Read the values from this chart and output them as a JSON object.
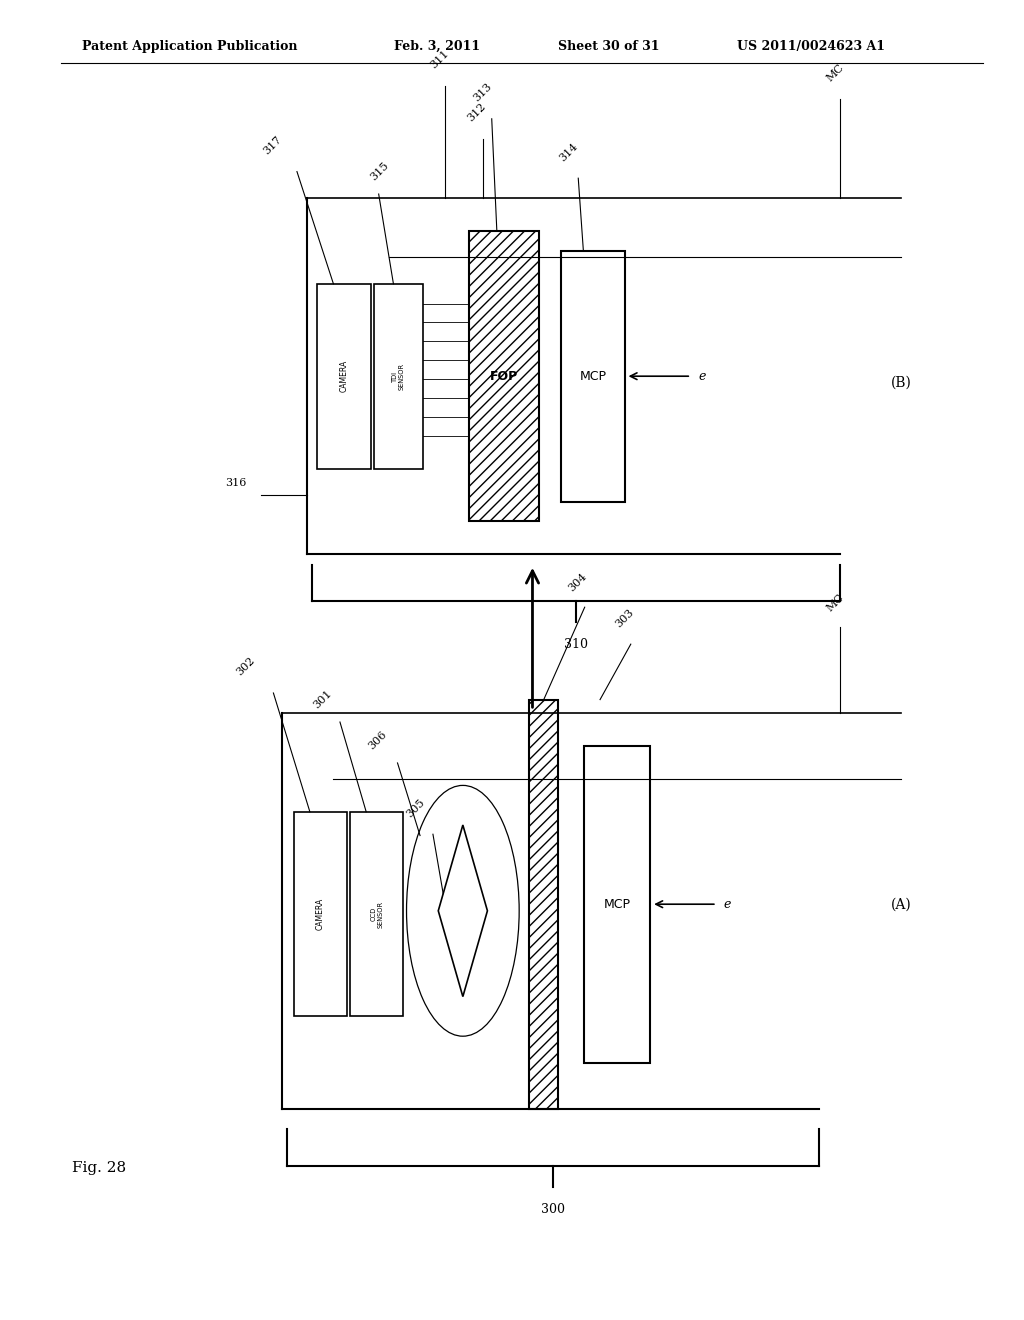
{
  "bg_color": "#ffffff",
  "header_text": "Patent Application Publication",
  "header_date": "Feb. 3, 2011",
  "header_sheet": "Sheet 30 of 31",
  "header_patent": "US 2011/0024623 A1",
  "fig_label": "Fig. 28",
  "diagram_A_label": "(A)",
  "diagram_B_label": "(B)",
  "bracket_A_label": "300",
  "bracket_B_label": "310"
}
